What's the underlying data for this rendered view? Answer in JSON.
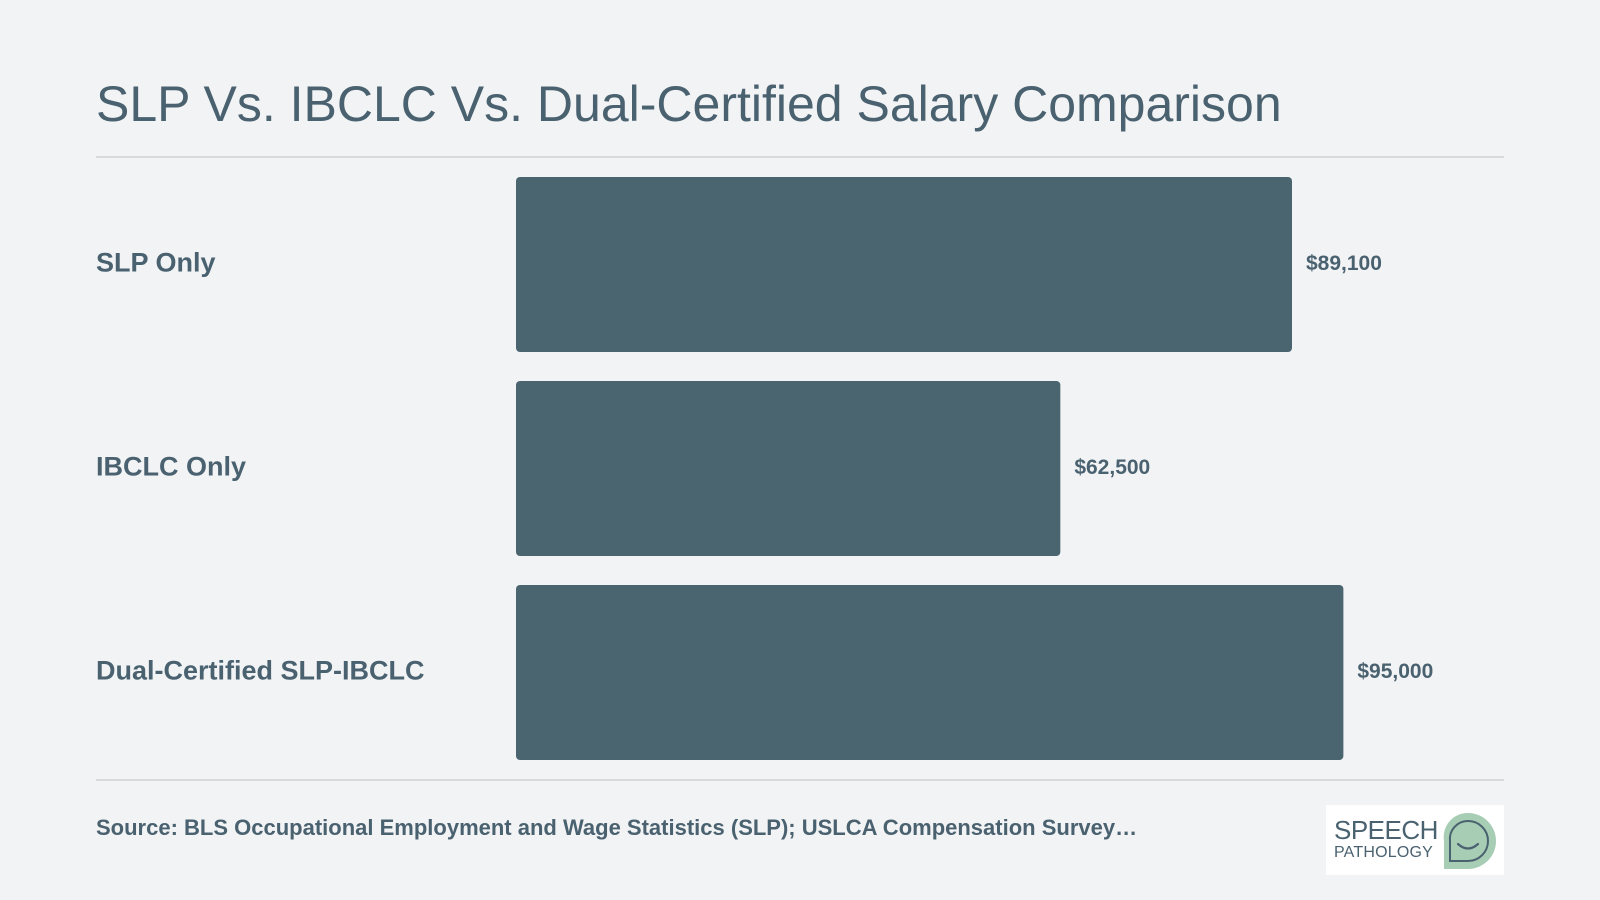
{
  "header": {
    "title": "SLP Vs. IBCLC Vs. Dual-Certified Salary Comparison"
  },
  "chart_data": {
    "type": "bar",
    "orientation": "horizontal",
    "title": "SLP Vs. IBCLC Vs. Dual-Certified Salary Comparison",
    "categories": [
      "SLP Only",
      "IBCLC Only",
      "Dual-Certified SLP-IBCLC"
    ],
    "values": [
      89100,
      62500,
      95000
    ],
    "value_labels": [
      "$89,100",
      "$62,500",
      "$95,000"
    ],
    "xlabel": "",
    "ylabel": "",
    "grid": false,
    "legend": "none",
    "bar_color": "#4a6570"
  },
  "footer": {
    "source": "Source: BLS Occupational Employment and Wage Statistics (SLP); USLCA Compensation Survey…"
  },
  "logo": {
    "line1": "SPEECH",
    "line2": "PATHOLOGY",
    "icon": "speech-bubble-smile-icon",
    "color_bubble": "#a8cdb5"
  },
  "colors": {
    "background": "#f2f3f5",
    "text": "#4a6270",
    "bar": "#4a6570",
    "rule": "#d7dadd"
  }
}
